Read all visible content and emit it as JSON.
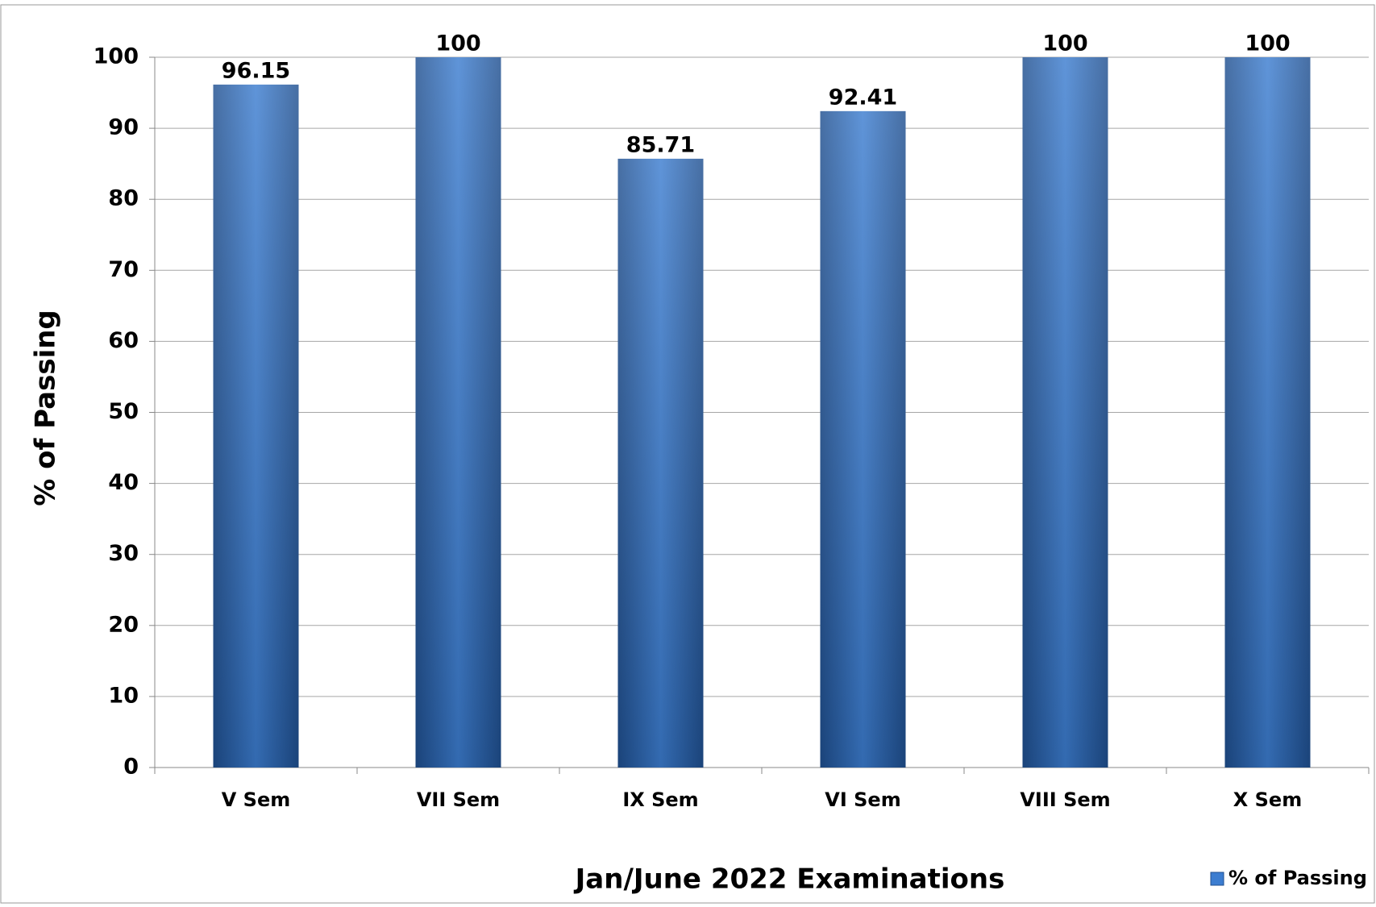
{
  "chart_data": {
    "type": "bar",
    "categories": [
      "V Sem",
      "VII Sem",
      "IX Sem",
      "VI Sem",
      "VIII Sem",
      "X Sem"
    ],
    "series": [
      {
        "name": "% of Passing",
        "color": "#3c7dd0",
        "values": [
          96.15,
          100,
          85.71,
          92.41,
          100,
          100
        ]
      }
    ],
    "x_label": "Jan/June 2022 Examinations",
    "y_label": "% of Passing",
    "ylim": [
      0,
      100
    ],
    "yticks": [
      0,
      10,
      20,
      30,
      40,
      50,
      60,
      70,
      80,
      90,
      100
    ],
    "grid": true,
    "legend": "bottom-right"
  }
}
